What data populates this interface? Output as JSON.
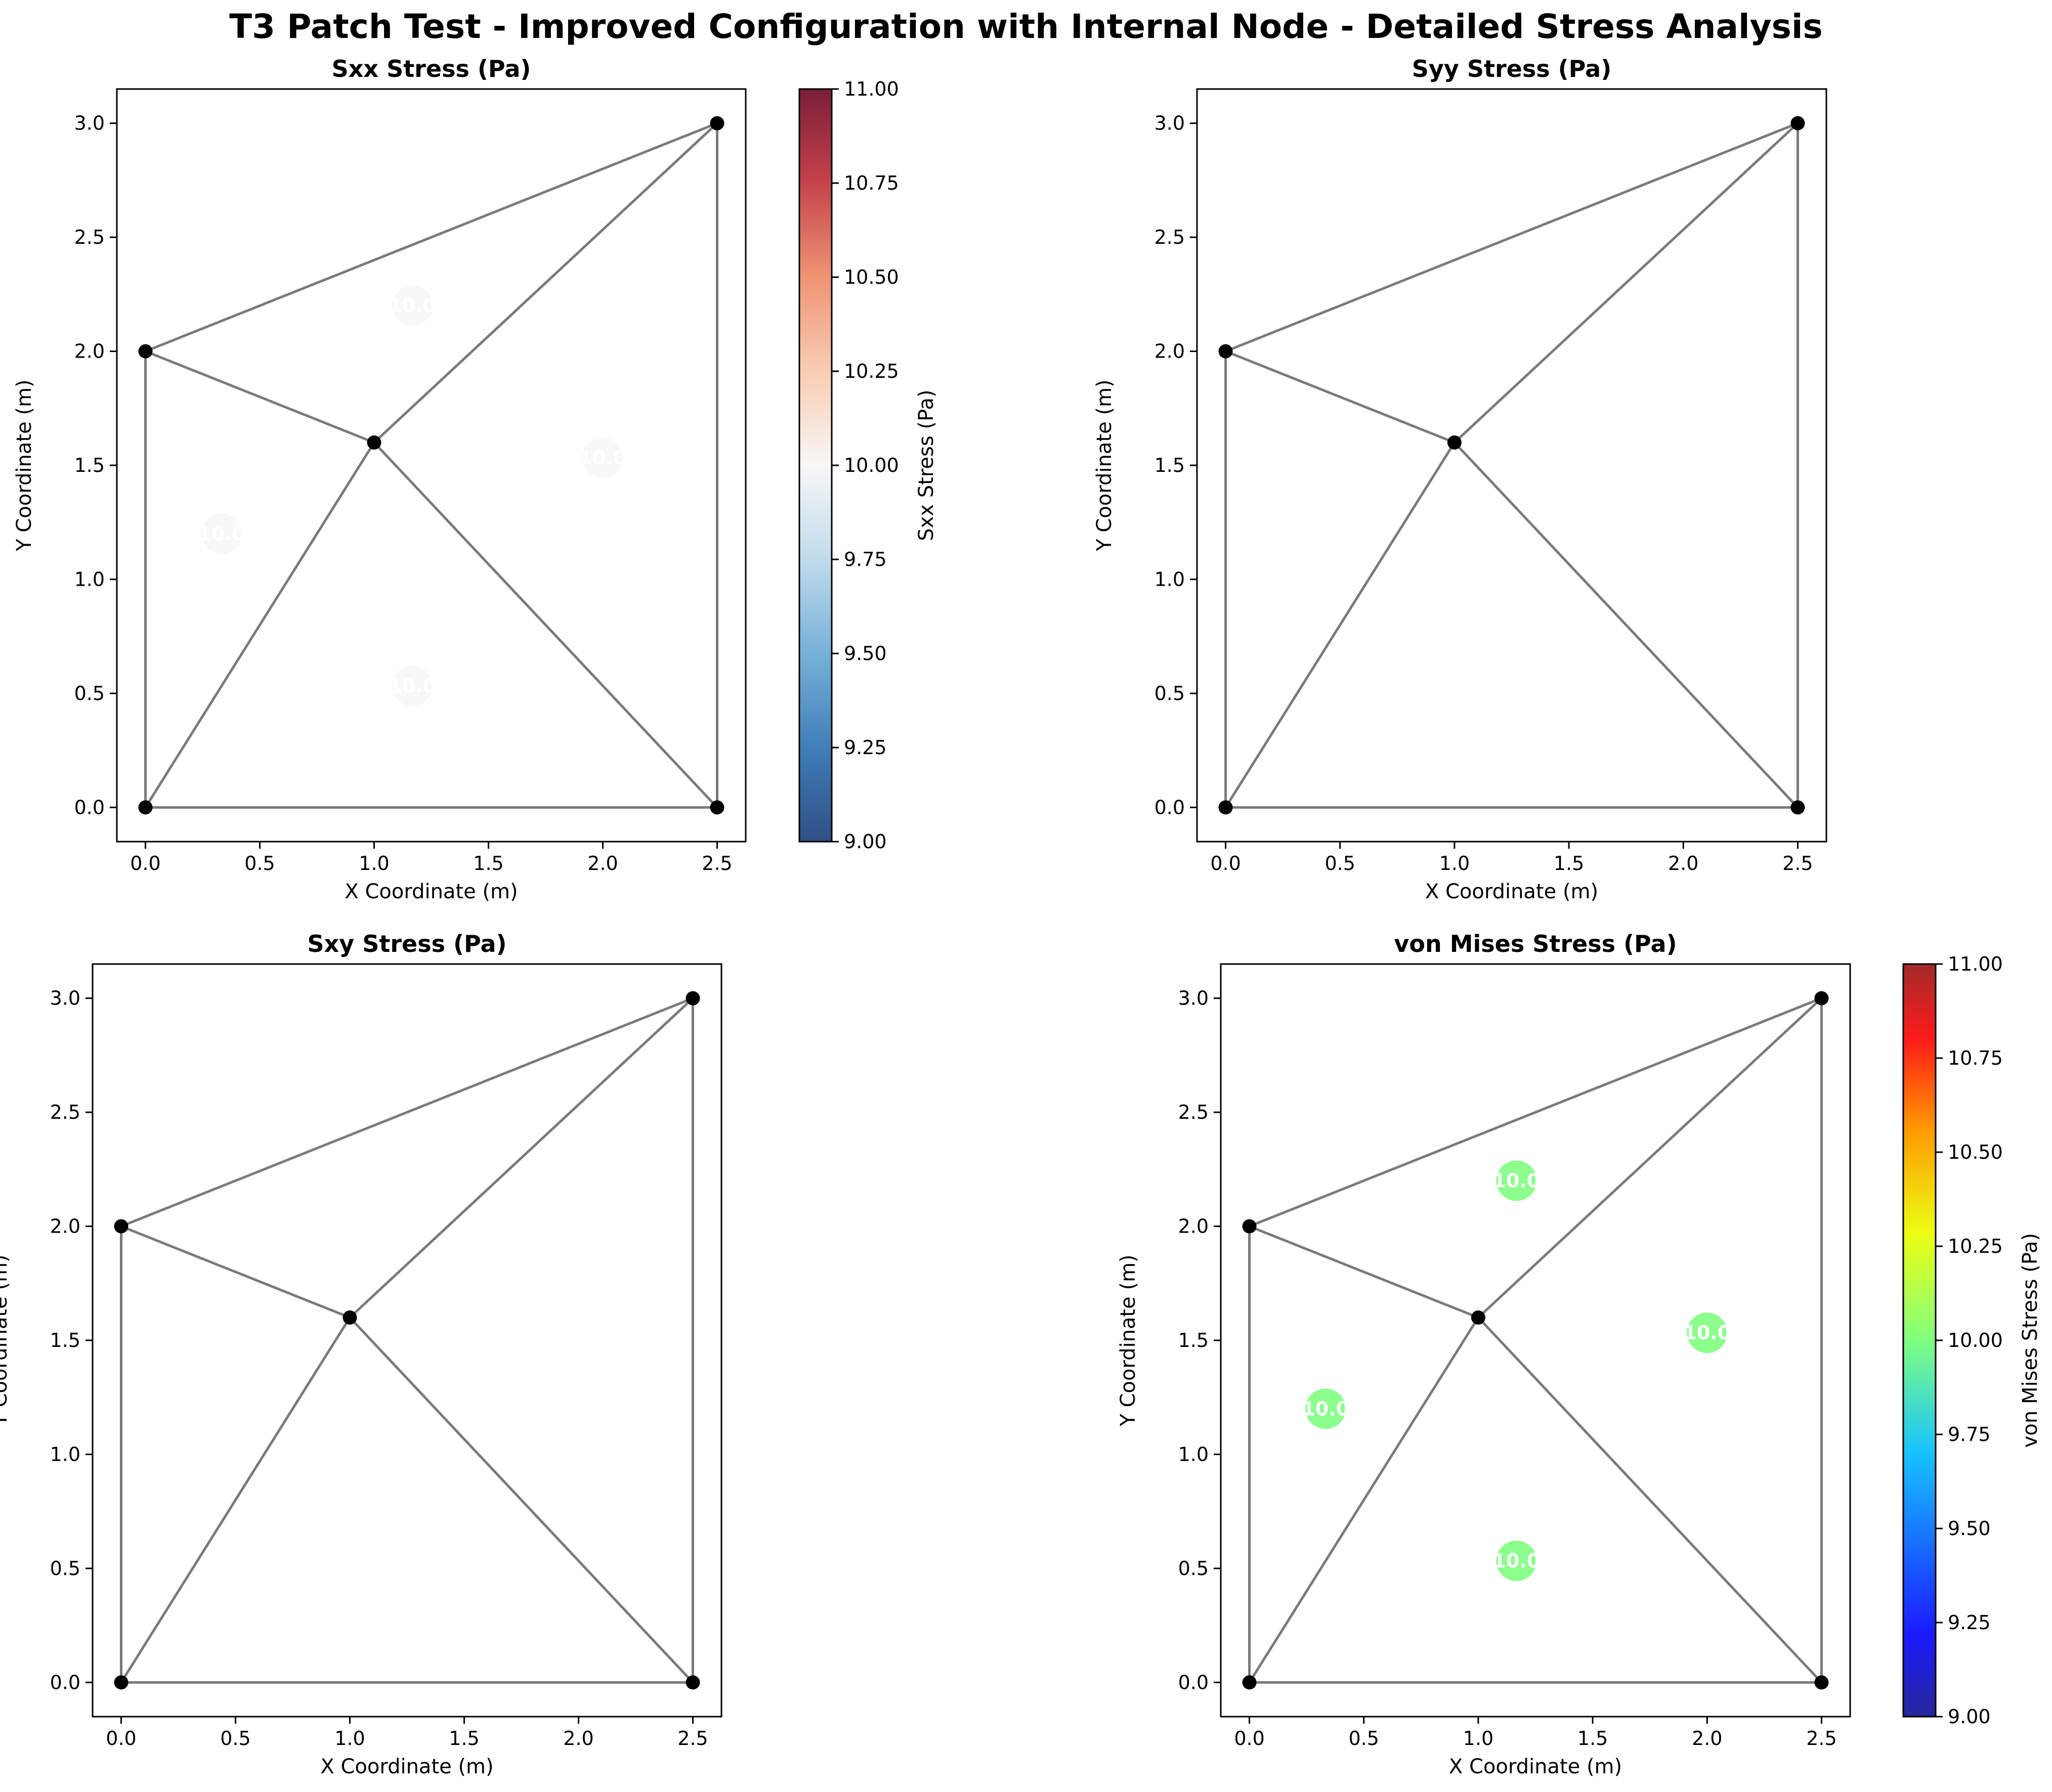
{
  "figure": {
    "title": "T3 Patch Test - Improved Configuration with Internal Node - Detailed Stress Analysis"
  },
  "colors": {
    "mesh_edge": "#7a7a7a",
    "node": "#000000",
    "sxx_marker": "#f7f7f7",
    "vm_marker": "#80ff80"
  },
  "chart_data": [
    {
      "type": "scatter",
      "title": "Sxx Stress (Pa)",
      "xlabel": "X Coordinate (m)",
      "ylabel": "Y Coordinate (m)",
      "xlim": [
        -0.125,
        2.625
      ],
      "ylim": [
        -0.15,
        3.15
      ],
      "xticks": [
        "0.0",
        "0.5",
        "1.0",
        "1.5",
        "2.0",
        "2.5"
      ],
      "yticks": [
        "0.0",
        "0.5",
        "1.0",
        "1.5",
        "2.0",
        "2.5",
        "3.0"
      ],
      "nodes": [
        [
          0,
          0
        ],
        [
          2.5,
          0
        ],
        [
          2.5,
          3
        ],
        [
          0,
          2
        ],
        [
          1,
          1.6
        ]
      ],
      "elements": [
        [
          0,
          1,
          4
        ],
        [
          1,
          2,
          4
        ],
        [
          2,
          3,
          4
        ],
        [
          3,
          0,
          4
        ]
      ],
      "element_markers": [
        {
          "x": 1.167,
          "y": 0.533,
          "value": 10.0,
          "label": "10.0"
        },
        {
          "x": 2.0,
          "y": 1.533,
          "value": 10.0,
          "label": "10.0"
        },
        {
          "x": 1.167,
          "y": 2.2,
          "value": 10.0,
          "label": "10.0"
        },
        {
          "x": 0.333,
          "y": 1.2,
          "value": 10.0,
          "label": "10.0"
        }
      ],
      "colorbar": {
        "label": "Sxx Stress (Pa)",
        "colormap": "RdBu_r",
        "range": [
          9.0,
          11.0
        ],
        "ticks": [
          "9.00",
          "9.25",
          "9.50",
          "9.75",
          "10.00",
          "10.25",
          "10.50",
          "10.75",
          "11.00"
        ]
      }
    },
    {
      "type": "scatter",
      "title": "Syy Stress (Pa)",
      "xlabel": "X Coordinate (m)",
      "ylabel": "Y Coordinate (m)",
      "xlim": [
        -0.125,
        2.625
      ],
      "ylim": [
        -0.15,
        3.15
      ],
      "xticks": [
        "0.0",
        "0.5",
        "1.0",
        "1.5",
        "2.0",
        "2.5"
      ],
      "yticks": [
        "0.0",
        "0.5",
        "1.0",
        "1.5",
        "2.0",
        "2.5",
        "3.0"
      ],
      "nodes": [
        [
          0,
          0
        ],
        [
          2.5,
          0
        ],
        [
          2.5,
          3
        ],
        [
          0,
          2
        ],
        [
          1,
          1.6
        ]
      ],
      "elements": [
        [
          0,
          1,
          4
        ],
        [
          1,
          2,
          4
        ],
        [
          2,
          3,
          4
        ],
        [
          3,
          0,
          4
        ]
      ],
      "element_markers": []
    },
    {
      "type": "scatter",
      "title": "Sxy Stress (Pa)",
      "xlabel": "X Coordinate (m)",
      "ylabel": "Y Coordinate (m)",
      "xlim": [
        -0.125,
        2.625
      ],
      "ylim": [
        -0.15,
        3.15
      ],
      "xticks": [
        "0.0",
        "0.5",
        "1.0",
        "1.5",
        "2.0",
        "2.5"
      ],
      "yticks": [
        "0.0",
        "0.5",
        "1.0",
        "1.5",
        "2.0",
        "2.5",
        "3.0"
      ],
      "nodes": [
        [
          0,
          0
        ],
        [
          2.5,
          0
        ],
        [
          2.5,
          3
        ],
        [
          0,
          2
        ],
        [
          1,
          1.6
        ]
      ],
      "elements": [
        [
          0,
          1,
          4
        ],
        [
          1,
          2,
          4
        ],
        [
          2,
          3,
          4
        ],
        [
          3,
          0,
          4
        ]
      ],
      "element_markers": []
    },
    {
      "type": "scatter",
      "title": "von Mises Stress (Pa)",
      "xlabel": "X Coordinate (m)",
      "ylabel": "Y Coordinate (m)",
      "xlim": [
        -0.125,
        2.625
      ],
      "ylim": [
        -0.15,
        3.15
      ],
      "xticks": [
        "0.0",
        "0.5",
        "1.0",
        "1.5",
        "2.0",
        "2.5"
      ],
      "yticks": [
        "0.0",
        "0.5",
        "1.0",
        "1.5",
        "2.0",
        "2.5",
        "3.0"
      ],
      "nodes": [
        [
          0,
          0
        ],
        [
          2.5,
          0
        ],
        [
          2.5,
          3
        ],
        [
          0,
          2
        ],
        [
          1,
          1.6
        ]
      ],
      "elements": [
        [
          0,
          1,
          4
        ],
        [
          1,
          2,
          4
        ],
        [
          2,
          3,
          4
        ],
        [
          3,
          0,
          4
        ]
      ],
      "element_markers": [
        {
          "x": 1.167,
          "y": 0.533,
          "value": 10.0,
          "label": "10.0"
        },
        {
          "x": 2.0,
          "y": 1.533,
          "value": 10.0,
          "label": "10.0"
        },
        {
          "x": 1.167,
          "y": 2.2,
          "value": 10.0,
          "label": "10.0"
        },
        {
          "x": 0.333,
          "y": 1.2,
          "value": 10.0,
          "label": "10.0"
        }
      ],
      "colorbar": {
        "label": "von Mises Stress (Pa)",
        "colormap": "jet",
        "range": [
          9.0,
          11.0
        ],
        "ticks": [
          "9.00",
          "9.25",
          "9.50",
          "9.75",
          "10.00",
          "10.25",
          "10.50",
          "10.75",
          "11.00"
        ]
      }
    }
  ]
}
